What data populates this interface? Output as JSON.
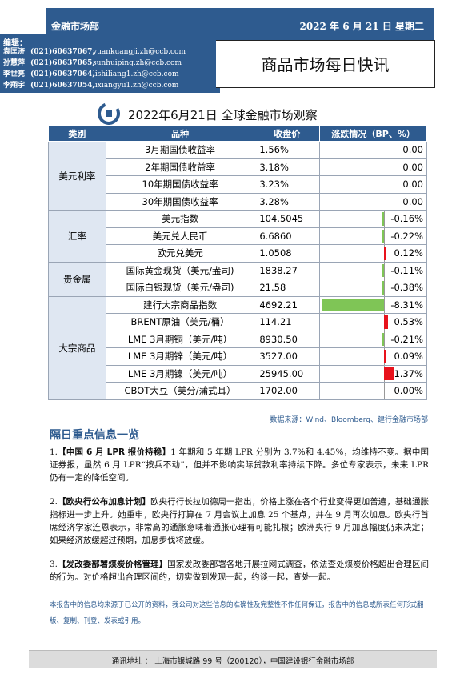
{
  "header": {
    "department": "金融市场部",
    "date": "2022 年 6 月 21 日  星期二",
    "report_title": "商品市场每日快讯"
  },
  "editors": {
    "label": "编辑：",
    "list": [
      {
        "name": "袁匡济",
        "phone": "(021)60637067,",
        "email": "yuankuangji.zh@ccb.com"
      },
      {
        "name": "孙慧萍",
        "phone": "(021)60637065,",
        "email": "sunhuiping.zh@ccb.com"
      },
      {
        "name": "李世亮",
        "phone": "(021)60637064,",
        "email": "lishiliang1.zh@ccb.com"
      },
      {
        "name": "李翔宇",
        "phone": "(021)60637054,",
        "email": "lixiangyu1.zh@ccb.com"
      }
    ]
  },
  "colors": {
    "brand": "#2e5b8f",
    "up": "#e8121c",
    "down": "#7fc556"
  },
  "table": {
    "title": "2022年6月21日  全球金融市场观察",
    "headers": {
      "category": "类别",
      "product": "品种",
      "close": "收盘价",
      "change": "涨跌情况（BP、%）"
    },
    "groups": [
      {
        "category": "美元利率",
        "rows": [
          {
            "product": "3月期国债收益率",
            "close": "1.56%",
            "change": "0.00",
            "value": 0.0
          },
          {
            "product": "2年期国债收益率",
            "close": "3.18%",
            "change": "0.00",
            "value": 0.0
          },
          {
            "product": "10年期国债收益率",
            "close": "3.23%",
            "change": "0.00",
            "value": 0.0
          },
          {
            "product": "30年期国债收益率",
            "close": "3.28%",
            "change": "0.00",
            "value": 0.0
          }
        ]
      },
      {
        "category": "汇率",
        "rows": [
          {
            "product": "美元指数",
            "close": "104.5045",
            "change": "-0.16%",
            "value": -0.16
          },
          {
            "product": "美元兑人民币",
            "close": "6.6860",
            "change": "-0.22%",
            "value": -0.22
          },
          {
            "product": "欧元兑美元",
            "close": "1.0508",
            "change": "0.12%",
            "value": 0.12
          }
        ]
      },
      {
        "category": "贵金属",
        "rows": [
          {
            "product": "国际黄金现货（美元/盎司)",
            "close": "1838.27",
            "change": "-0.11%",
            "value": -0.11
          },
          {
            "product": "国际白银现货（美元/盎司)",
            "close": "21.58",
            "change": "-0.38%",
            "value": -0.38
          }
        ]
      },
      {
        "category": "大宗商品",
        "rows": [
          {
            "product": "建行大宗商品指数",
            "close": "4692.21",
            "change": "-8.31%",
            "value": -8.31
          },
          {
            "product": "BRENT原油（美元/桶）",
            "close": "114.21",
            "change": "0.53%",
            "value": 0.53
          },
          {
            "product": "LME 3月期铜（美元/吨）",
            "close": "8930.50",
            "change": "-0.21%",
            "value": -0.21
          },
          {
            "product": "LME 3月期锌（美元/吨）",
            "close": "3527.00",
            "change": "0.09%",
            "value": 0.09
          },
          {
            "product": "LME 3月期镍（美元/吨）",
            "close": "25945.00",
            "change": "1.37%",
            "value": 1.37
          },
          {
            "product": "CBOT大豆（美分/蒲式耳）",
            "close": "1702.00",
            "change": "0.00%",
            "value": 0.0
          }
        ]
      }
    ],
    "source": "数据来源：Wind、Bloomberg、建行金融市场部"
  },
  "news": {
    "title": "隔日重点信息一览",
    "items": [
      {
        "num": "1.",
        "head": "【中国 6 月 LPR 报价持稳】",
        "body": "1 年期和 5 年期 LPR 分别为 3.7%和 4.45%，均维持不变。据中国证券报，虽然 6 月 LPR“按兵不动”，但并不影响实际贷款利率持续下降。多位专家表示，未来 LPR 仍有一定的降低空间。"
      },
      {
        "num": "2.",
        "head": "【欧央行公布加息计划】",
        "body": "欧央行行长拉加德周一指出，价格上涨在各个行业变得更加普遍，基础通胀指标进一步上升。她重申，欧央行打算在 7 月会议上加息 25 个基点，并在 9 月再次加息。欧央行首席经济学家连恩表示，非常高的通胀意味着通胀心理有可能扎根；欧洲央行 9 月加息幅度仍未决定；如果经济放缓超过预期，加息步伐将放缓。"
      },
      {
        "num": "3.",
        "head": "【发改委部署煤炭价格管理】",
        "body": "国家发改委部署各地开展拉网式调查，依法查处煤炭价格超出合理区间的行为。对价格超出合理区间的，切实做到发现一起，约谈一起，查处一起。"
      }
    ]
  },
  "disclaimer": "本报告中的信息均来源于已公开的资料，我公司对这些信息的准确性及完整性不作任何保证，报告中的信息或所表任何形式翻版、复制、刊登、发表或引用。",
  "footer": "通讯地址 ： 上海市银城路 99 号（200120），中国建设银行金融市场部"
}
